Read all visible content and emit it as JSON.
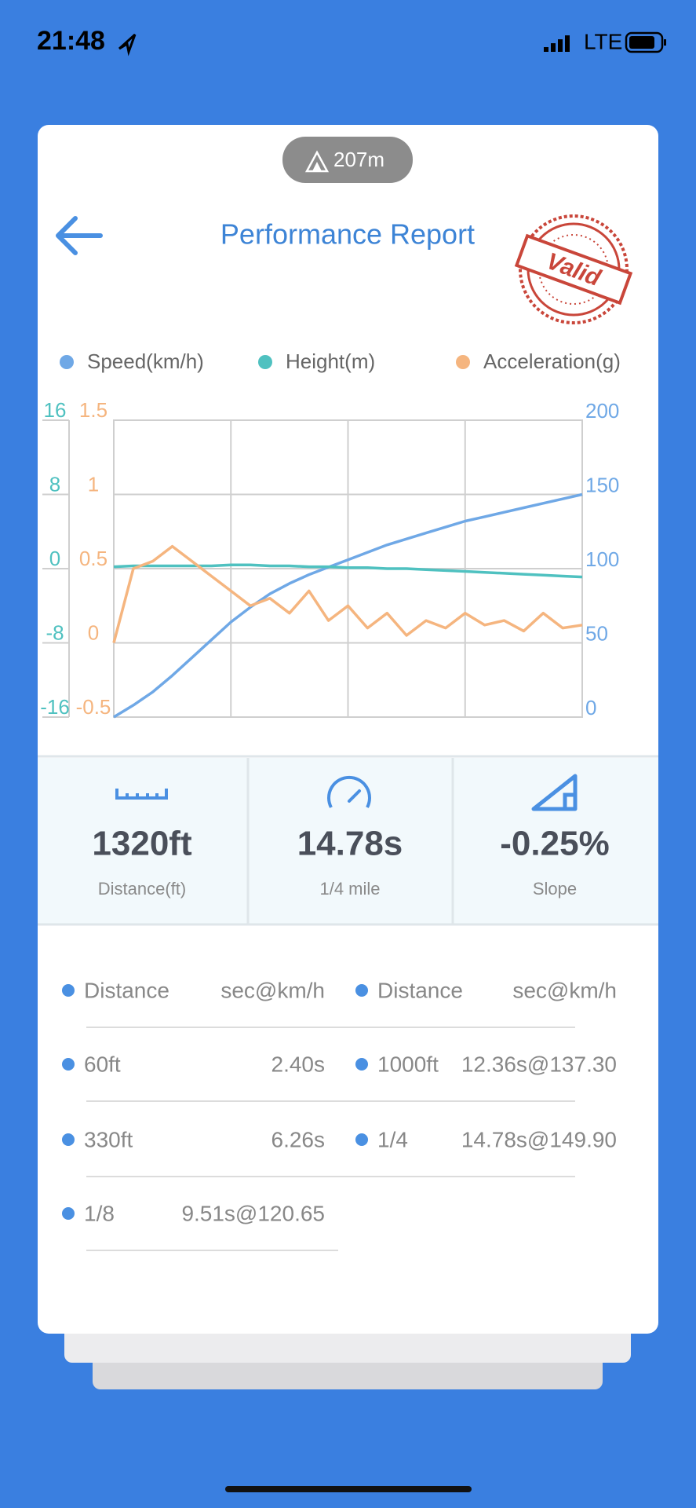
{
  "status_bar": {
    "time": "21:48",
    "network": "LTE"
  },
  "badge": "207m",
  "header": {
    "title": "Performance Report",
    "stamp": "Valid"
  },
  "chart_data": {
    "type": "line",
    "legend": "top",
    "grid": true,
    "ylim": [
      -16,
      16
    ],
    "yticks": [
      -16,
      -8,
      0,
      8,
      16
    ],
    "y2lim": [
      -0.5,
      1.5
    ],
    "y2ticks": [
      -0.5,
      0,
      0.5,
      1,
      1.5
    ],
    "y3lim": [
      0,
      200
    ],
    "y3ticks": [
      0,
      50,
      100,
      150,
      200
    ],
    "series": [
      {
        "name": "Speed(km/h)",
        "color": "#6fa8e6",
        "axis": "y3",
        "values": [
          0,
          8,
          17,
          28,
          40,
          52,
          64,
          74,
          83,
          90,
          96,
          101,
          106,
          111,
          116,
          120,
          124,
          128,
          132,
          135,
          138,
          141,
          144,
          147,
          150
        ]
      },
      {
        "name": "Height(m)",
        "color": "#4fc1c0",
        "axis": "y",
        "values": [
          0.2,
          0.3,
          0.3,
          0.3,
          0.3,
          0.3,
          0.4,
          0.4,
          0.3,
          0.3,
          0.2,
          0.2,
          0.1,
          0.1,
          0.0,
          0.0,
          -0.1,
          -0.2,
          -0.3,
          -0.4,
          -0.5,
          -0.6,
          -0.7,
          -0.8,
          -0.9
        ]
      },
      {
        "name": "Acceleration(g)",
        "color": "#f5b57f",
        "axis": "y2",
        "values": [
          0,
          0.5,
          0.55,
          0.65,
          0.55,
          0.45,
          0.35,
          0.25,
          0.3,
          0.2,
          0.35,
          0.15,
          0.25,
          0.1,
          0.2,
          0.05,
          0.15,
          0.1,
          0.2,
          0.12,
          0.15,
          0.08,
          0.2,
          0.1,
          0.12
        ]
      }
    ]
  },
  "stats": [
    {
      "value": "1320ft",
      "label": "Distance(ft)"
    },
    {
      "value": "14.78s",
      "label": "1/4 mile"
    },
    {
      "value": "-0.25%",
      "label": "Slope"
    }
  ],
  "splits": {
    "header": [
      "Distance",
      "sec@km/h",
      "Distance",
      "sec@km/h"
    ],
    "rows": [
      [
        "60ft",
        "2.40s",
        "1000ft",
        "12.36s@137.30"
      ],
      [
        "330ft",
        "6.26s",
        "1/4",
        "14.78s@149.90"
      ],
      [
        "1/8",
        "9.51s@120.65"
      ]
    ]
  }
}
